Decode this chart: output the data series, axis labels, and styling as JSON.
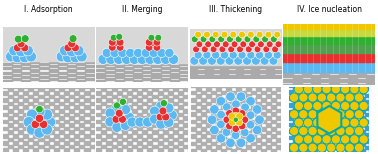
{
  "title_labels": [
    "I. Adsorption",
    "II. Merging",
    "III. Thickening",
    "IV. Ice nucleation"
  ],
  "colors": {
    "blue": "#5BB8F0",
    "red": "#E83030",
    "green": "#30B030",
    "yellow": "#F0C800",
    "gray_light": "#D8D8D8",
    "gray_dark": "#B8B8B8",
    "checker1": "#C8C8C8",
    "checker2": "#B0B0B0",
    "cyan": "#00AAAA",
    "white": "#FFFFFF"
  },
  "fig_width": 3.78,
  "fig_height": 1.54,
  "dpi": 100
}
